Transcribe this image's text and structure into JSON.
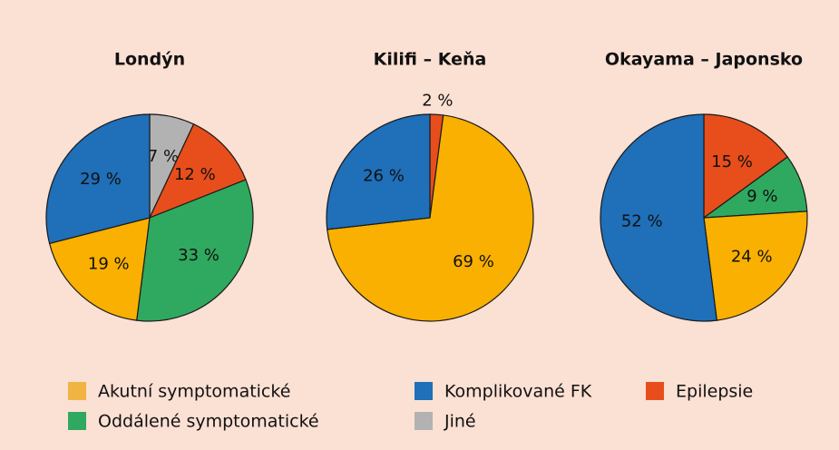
{
  "chart_data": [
    {
      "type": "pie",
      "title": "Londýn",
      "values": [
        7,
        12,
        33,
        19,
        29
      ],
      "value_labels": [
        "7 %",
        "12 %",
        "33 %",
        "19 %",
        "29 %"
      ],
      "colors": [
        "#b2b2b2",
        "#e84e1b",
        "#2fa95f",
        "#f9b000",
        "#1f6fb9"
      ]
    },
    {
      "type": "pie",
      "title": "Kilifi – Keňa",
      "values": [
        2,
        69,
        26
      ],
      "value_labels": [
        "2 %",
        "69 %",
        "26 %"
      ],
      "colors": [
        "#e84e1b",
        "#f9b000",
        "#1f6fb9"
      ]
    },
    {
      "type": "pie",
      "title": "Okayama – Japonsko",
      "values": [
        15,
        9,
        24,
        52
      ],
      "value_labels": [
        "15 %",
        "9 %",
        "24 %",
        "52 %"
      ],
      "colors": [
        "#e84e1b",
        "#2fa95f",
        "#f9b000",
        "#1f6fb9"
      ]
    }
  ],
  "legend": [
    {
      "name": "Akutní symptomatické",
      "color": "#f0b442"
    },
    {
      "name": "Oddálené symptomatické",
      "color": "#2fa95f"
    },
    {
      "name": "Komplikované FK",
      "color": "#1f6fb9"
    },
    {
      "name": "Jiné",
      "color": "#b2b2b2"
    },
    {
      "name": "Epilepsie",
      "color": "#e84e1b"
    }
  ]
}
